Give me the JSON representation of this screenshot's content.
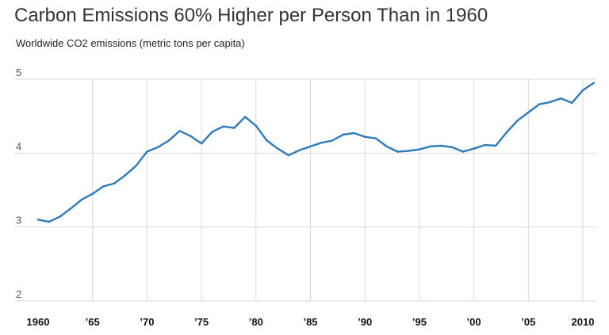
{
  "title": "Carbon Emissions 60% Higher per Person Than in 1960",
  "subtitle": "Worldwide CO2 emissions (metric tons per capita)",
  "chart_data": {
    "type": "line",
    "title": "Carbon Emissions 60% Higher per Person Than in 1960",
    "subtitle": "Worldwide CO2 emissions (metric tons per capita)",
    "xlabel": "",
    "ylabel": "",
    "xlim": [
      1959,
      2011
    ],
    "ylim": [
      2,
      5
    ],
    "grid": true,
    "line_color": "#2f7ab9",
    "yticks": [
      {
        "value": 2,
        "label": "2"
      },
      {
        "value": 3,
        "label": "3"
      },
      {
        "value": 4,
        "label": "4"
      },
      {
        "value": 5,
        "label": "5"
      }
    ],
    "xticks": [
      {
        "value": 1960,
        "label": "1960"
      },
      {
        "value": 1965,
        "label": "’65"
      },
      {
        "value": 1970,
        "label": "’70"
      },
      {
        "value": 1975,
        "label": "’75"
      },
      {
        "value": 1980,
        "label": "’80"
      },
      {
        "value": 1985,
        "label": "’85"
      },
      {
        "value": 1990,
        "label": "’90"
      },
      {
        "value": 1995,
        "label": "’95"
      },
      {
        "value": 2000,
        "label": "’00"
      },
      {
        "value": 2005,
        "label": "’05"
      },
      {
        "value": 2010,
        "label": "2010"
      }
    ],
    "series": [
      {
        "x": [
          1960,
          1961,
          1962,
          1963,
          1964,
          1965,
          1966,
          1967,
          1968,
          1969,
          1970,
          1971,
          1972,
          1973,
          1974,
          1975,
          1976,
          1977,
          1978,
          1979,
          1980,
          1981,
          1982,
          1983,
          1984,
          1985,
          1986,
          1987,
          1988,
          1989,
          1990,
          1991,
          1992,
          1993,
          1994,
          1995,
          1996,
          1997,
          1998,
          1999,
          2000,
          2001,
          2002,
          2003,
          2004,
          2005,
          2006,
          2007,
          2008,
          2009,
          2010,
          2011
        ],
        "values": [
          3.1,
          3.07,
          3.14,
          3.25,
          3.37,
          3.45,
          3.55,
          3.59,
          3.7,
          3.83,
          4.02,
          4.08,
          4.17,
          4.3,
          4.23,
          4.13,
          4.29,
          4.36,
          4.34,
          4.49,
          4.37,
          4.17,
          4.06,
          3.97,
          4.04,
          4.09,
          4.14,
          4.17,
          4.25,
          4.27,
          4.22,
          4.2,
          4.09,
          4.02,
          4.03,
          4.05,
          4.09,
          4.1,
          4.08,
          4.02,
          4.06,
          4.11,
          4.1,
          4.28,
          4.44,
          4.55,
          4.66,
          4.69,
          4.74,
          4.68,
          4.85,
          4.95
        ]
      }
    ]
  }
}
